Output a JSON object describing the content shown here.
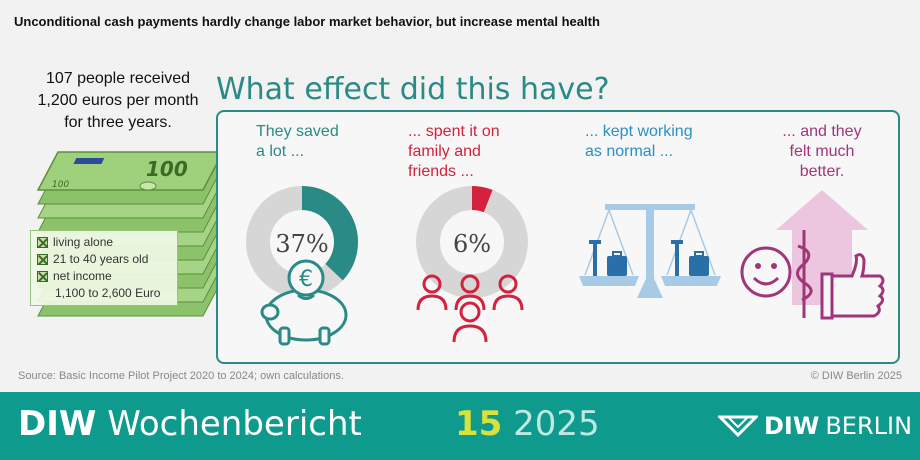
{
  "title": "Unconditional cash payments hardly change labor market behavior, but increase mental health",
  "intro": {
    "line1": "107 people received",
    "line2": "1,200 euros per month",
    "line3": "for three years."
  },
  "bill_denomination": "100",
  "criteria": {
    "item1": "living alone",
    "item2": "21 to 40 years old",
    "item3": "net income",
    "item3_detail": "1,100 to 2,600 Euro"
  },
  "headline": "What effect did this have?",
  "columns": {
    "saved": {
      "line1": "They saved",
      "line2": "a lot ...",
      "percent_label": "37%",
      "share": 0.37,
      "color": "#2a8a85"
    },
    "spent": {
      "line1": "... spent it on",
      "line2": "family and",
      "line3": "friends ...",
      "percent_label": "6%",
      "share": 0.06,
      "color": "#d4213d"
    },
    "working": {
      "line1": "... kept working",
      "line2": "as normal ...",
      "color": "#2a8fc8"
    },
    "better": {
      "line1": "... and they",
      "line2": "felt much",
      "line3": "better.",
      "color": "#a0357a"
    }
  },
  "icons": {
    "piggy": "piggy-bank-euro-icon",
    "people": "people-group-icon",
    "scale": "balance-scale-icon",
    "health": "smiley-health-thumbs-up-icon"
  },
  "source": "Source: Basic Income Pilot Project 2020 to 2024; own calculations.",
  "copyright": "© DIW Berlin 2025",
  "footer": {
    "brand_bold": "DIW",
    "brand_rest": "Wochenbericht",
    "issue": "15",
    "year": "2025",
    "logo_diw": "DIW",
    "logo_berlin": "BERLIN"
  },
  "colors": {
    "teal": "#2a8a85",
    "red": "#d4213d",
    "blue": "#2a8fc8",
    "purple": "#a0357a",
    "footer": "#0e9a8c",
    "bill_green": "#8cc26a"
  }
}
